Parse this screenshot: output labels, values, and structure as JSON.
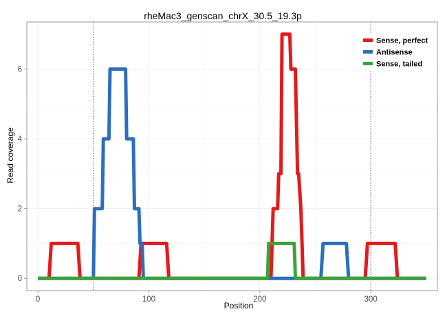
{
  "chart_data": {
    "type": "line",
    "title": "rheMac3_genscan_chrX_30.5_19.3p",
    "xlabel": "Position",
    "ylabel": "Read coverage",
    "xlim": [
      -10,
      360
    ],
    "ylim": [
      -0.35,
      7.35
    ],
    "xticks": [
      0,
      100,
      200,
      300
    ],
    "yticks": [
      0,
      2,
      4,
      6
    ],
    "grid": true,
    "legend_position": "top-right",
    "vlines": [
      50,
      300
    ],
    "series": [
      {
        "name": "Sense, perfect",
        "color": "#e41a1c",
        "x": [
          0,
          10,
          12,
          36,
          38,
          91,
          93,
          116,
          118,
          210,
          212,
          216,
          217,
          219,
          220,
          226,
          227,
          228,
          229,
          231,
          232,
          234,
          235,
          237,
          238,
          239,
          240,
          243,
          295,
          297,
          322,
          324,
          350
        ],
        "y": [
          0,
          0,
          1,
          1,
          0,
          0,
          1,
          1,
          0,
          0,
          2,
          2,
          3,
          3,
          7,
          7,
          7,
          6,
          6,
          6,
          6,
          3,
          3,
          2,
          1,
          0,
          0,
          0,
          0,
          1,
          1,
          0,
          0
        ]
      },
      {
        "name": "Antisense",
        "color": "#2c6fbb",
        "x": [
          0,
          50,
          51,
          58,
          59,
          64,
          65,
          70,
          71,
          79,
          80,
          86,
          87,
          91,
          92,
          94,
          95,
          255,
          257,
          278,
          280,
          350
        ],
        "y": [
          0,
          0,
          2,
          2,
          4,
          4,
          6,
          6,
          6,
          6,
          4,
          4,
          2,
          2,
          1,
          1,
          0,
          0,
          1,
          1,
          0,
          0
        ]
      },
      {
        "name": "Sense, tailed",
        "color": "#3aa43a",
        "x": [
          0,
          207,
          208,
          231,
          232,
          350
        ],
        "y": [
          0,
          0,
          1,
          1,
          0,
          0
        ]
      }
    ]
  }
}
